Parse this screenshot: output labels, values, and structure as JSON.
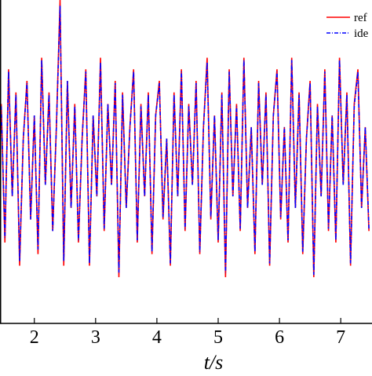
{
  "chart_data": {
    "type": "line",
    "x": [
      1.46,
      1.52,
      1.58,
      1.64,
      1.7,
      1.76,
      1.82,
      1.88,
      1.94,
      2,
      2.06,
      2.12,
      2.18,
      2.24,
      2.3,
      2.36,
      2.42,
      2.48,
      2.54,
      2.6,
      2.66,
      2.72,
      2.78,
      2.84,
      2.9,
      2.96,
      3.02,
      3.08,
      3.14,
      3.2,
      3.26,
      3.32,
      3.38,
      3.44,
      3.5,
      3.56,
      3.62,
      3.68,
      3.74,
      3.8,
      3.86,
      3.92,
      3.98,
      4.04,
      4.1,
      4.16,
      4.22,
      4.28,
      4.34,
      4.4,
      4.46,
      4.52,
      4.58,
      4.64,
      4.7,
      4.76,
      4.82,
      4.88,
      4.94,
      5,
      5.06,
      5.12,
      5.18,
      5.24,
      5.3,
      5.36,
      5.42,
      5.48,
      5.54,
      5.6,
      5.66,
      5.72,
      5.78,
      5.84,
      5.9,
      5.96,
      6.02,
      6.08,
      6.14,
      6.2,
      6.26,
      6.32,
      6.38,
      6.44,
      6.5,
      6.56,
      6.62,
      6.68,
      6.74,
      6.8,
      6.86,
      6.92,
      6.98,
      7.04,
      7.1,
      7.16,
      7.22,
      7.28,
      7.34,
      7.4,
      7.46
    ],
    "series": [
      {
        "name": "ref",
        "color": "#ff0000",
        "dash": "solid",
        "values": [
          0.5,
          -0.7,
          0.8,
          -0.3,
          0.6,
          -0.9,
          0.2,
          0.7,
          -0.5,
          0.4,
          -0.8,
          0.9,
          -0.2,
          0.6,
          -0.6,
          0.3,
          1.4,
          -0.9,
          0.7,
          -0.4,
          0.5,
          -0.7,
          0.2,
          0.8,
          -0.9,
          0.4,
          -0.3,
          0.9,
          -0.6,
          0.5,
          -0.2,
          0.7,
          -1.0,
          0.6,
          -0.4,
          0.3,
          0.8,
          -0.7,
          0.5,
          -0.3,
          0.6,
          -0.8,
          0.4,
          0.7,
          -0.5,
          0.2,
          -0.9,
          0.6,
          -0.3,
          0.8,
          -0.6,
          0.5,
          -0.2,
          0.7,
          -0.8,
          0.3,
          0.9,
          -0.5,
          0.4,
          -0.7,
          0.6,
          -1.0,
          0.8,
          -0.3,
          0.5,
          -0.6,
          0.9,
          -0.4,
          0.3,
          -0.8,
          0.7,
          -0.2,
          0.6,
          -0.9,
          0.4,
          0.8,
          -0.5,
          0.3,
          -0.7,
          0.9,
          -0.4,
          0.6,
          -0.8,
          0.2,
          0.7,
          -1.0,
          0.5,
          -0.3,
          0.8,
          -0.6,
          0.4,
          -0.7,
          0.9,
          -0.2,
          0.6,
          -0.9,
          0.5,
          0.8,
          -0.4,
          0.3,
          -0.6
        ]
      },
      {
        "name": "ide",
        "color": "#0000ff",
        "dash": "dashdot",
        "values": [
          0.48,
          -0.66,
          0.78,
          -0.3,
          0.58,
          -0.86,
          0.2,
          0.68,
          -0.5,
          0.4,
          -0.76,
          0.88,
          -0.2,
          0.58,
          -0.6,
          0.3,
          1.35,
          -0.86,
          0.7,
          -0.4,
          0.48,
          -0.68,
          0.2,
          0.78,
          -0.88,
          0.4,
          -0.3,
          0.86,
          -0.58,
          0.5,
          -0.2,
          0.68,
          -0.96,
          0.58,
          -0.4,
          0.3,
          0.78,
          -0.68,
          0.48,
          -0.3,
          0.58,
          -0.78,
          0.4,
          0.68,
          -0.48,
          0.2,
          -0.88,
          0.58,
          -0.3,
          0.78,
          -0.58,
          0.48,
          -0.2,
          0.68,
          -0.78,
          0.3,
          0.86,
          -0.48,
          0.4,
          -0.68,
          0.58,
          -0.96,
          0.78,
          -0.3,
          0.48,
          -0.58,
          0.88,
          -0.4,
          0.3,
          -0.78,
          0.68,
          -0.2,
          0.58,
          -0.88,
          0.4,
          0.78,
          -0.48,
          0.3,
          -0.68,
          0.88,
          -0.4,
          0.58,
          -0.78,
          0.2,
          0.68,
          -0.98,
          0.48,
          -0.3,
          0.78,
          -0.58,
          0.4,
          -0.68,
          0.88,
          -0.2,
          0.58,
          -0.88,
          0.48,
          0.78,
          -0.4,
          0.3,
          -0.58
        ]
      }
    ],
    "xlabel": "t/s",
    "xlim": [
      1.44,
      7.51
    ],
    "xticks": [
      2,
      3,
      4,
      5,
      6,
      7
    ],
    "ylim": [
      -1.4,
      1.4
    ]
  }
}
